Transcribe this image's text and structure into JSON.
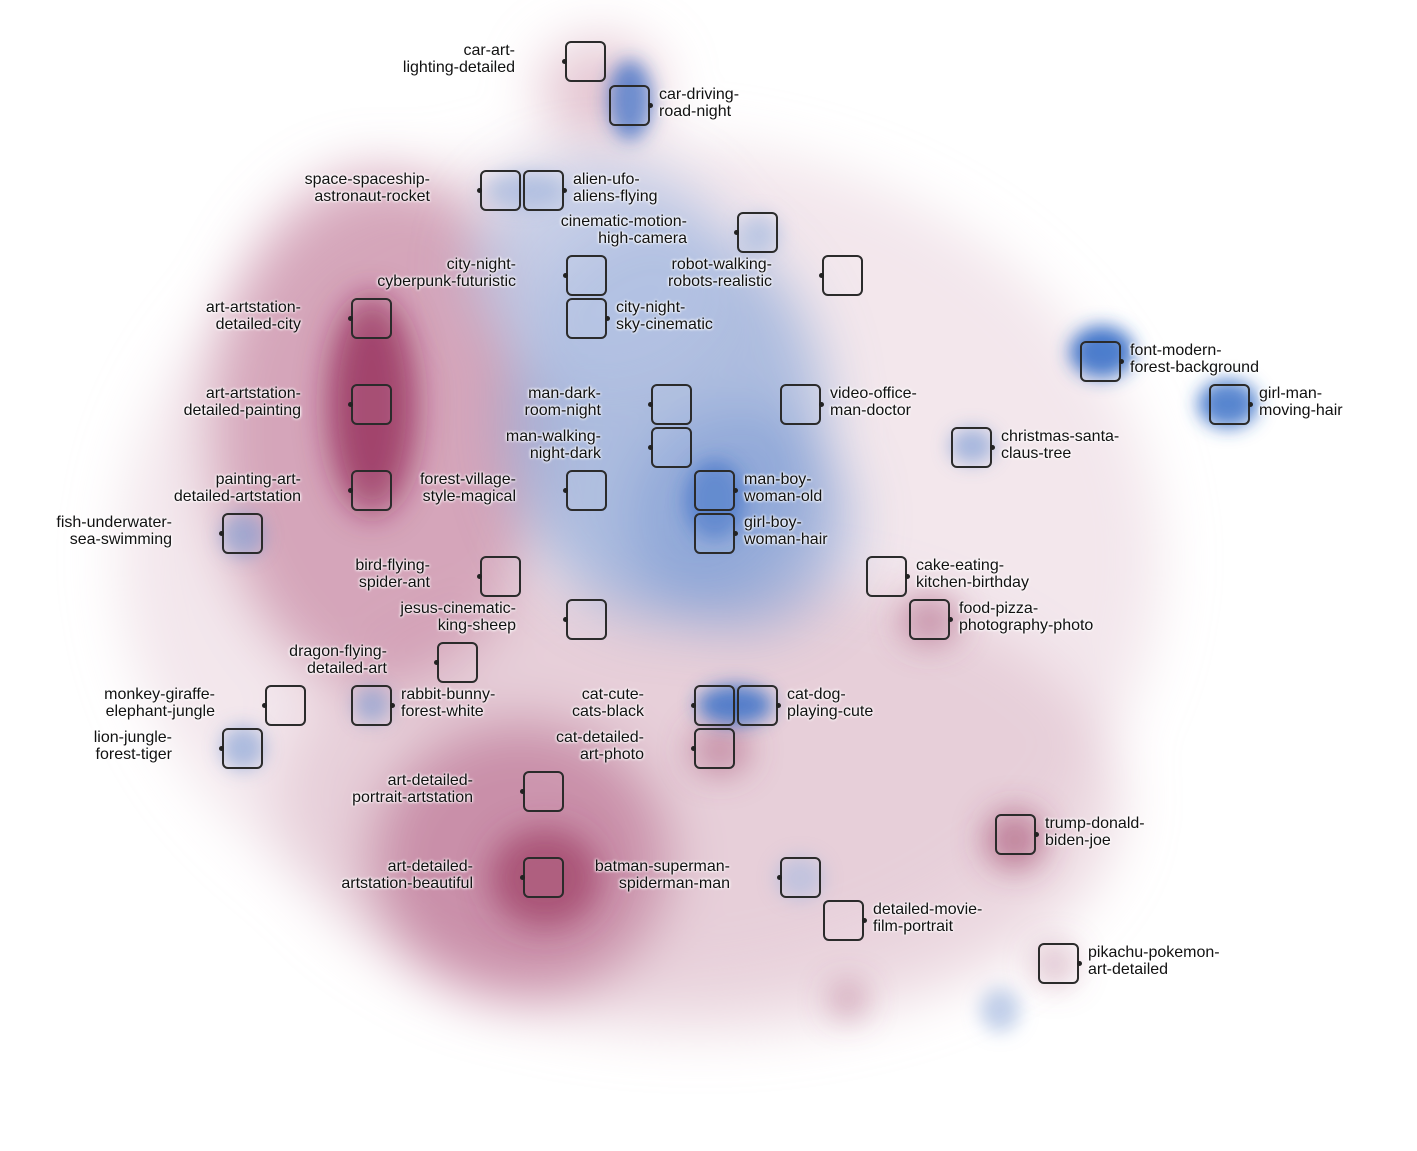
{
  "colors": {
    "red_theme": "#8c1c4d",
    "blue_theme": "#2f67c4"
  },
  "clusters": [
    {
      "id": "car-art",
      "l1": "car-art-",
      "l2": "lighting-detailed",
      "side": "left",
      "theme": "red"
    },
    {
      "id": "car-driving",
      "l1": "car-driving-",
      "l2": "road-night",
      "side": "right",
      "theme": "blue"
    },
    {
      "id": "space-spaceship",
      "l1": "space-spaceship-",
      "l2": "astronaut-rocket",
      "side": "left",
      "theme": "blue"
    },
    {
      "id": "alien-ufo",
      "l1": "alien-ufo-",
      "l2": "aliens-flying",
      "side": "right",
      "theme": "blue"
    },
    {
      "id": "cinematic-motion",
      "l1": "cinematic-motion-",
      "l2": "high-camera",
      "side": "left",
      "theme": "blue"
    },
    {
      "id": "city-night-cyberpunk",
      "l1": "city-night-",
      "l2": "cyberpunk-futuristic",
      "side": "left",
      "theme": "blue"
    },
    {
      "id": "robot-walking",
      "l1": "robot-walking-",
      "l2": "robots-realistic",
      "side": "left",
      "theme": "blue"
    },
    {
      "id": "art-artstation-city",
      "l1": "art-artstation-",
      "l2": "detailed-city",
      "side": "left",
      "theme": "red"
    },
    {
      "id": "city-night-sky",
      "l1": "city-night-",
      "l2": "sky-cinematic",
      "side": "right",
      "theme": "blue"
    },
    {
      "id": "font-modern",
      "l1": "font-modern-",
      "l2": "forest-background",
      "side": "right",
      "theme": "blue"
    },
    {
      "id": "art-artstation-painting",
      "l1": "art-artstation-",
      "l2": "detailed-painting",
      "side": "left",
      "theme": "red"
    },
    {
      "id": "man-dark",
      "l1": "man-dark-",
      "l2": "room-night",
      "side": "left",
      "theme": "blue"
    },
    {
      "id": "video-office",
      "l1": "video-office-",
      "l2": "man-doctor",
      "side": "right",
      "theme": "blue"
    },
    {
      "id": "girl-man",
      "l1": "girl-man-",
      "l2": "moving-hair",
      "side": "right",
      "theme": "blue"
    },
    {
      "id": "man-walking",
      "l1": "man-walking-",
      "l2": "night-dark",
      "side": "left",
      "theme": "blue"
    },
    {
      "id": "christmas-santa",
      "l1": "christmas-santa-",
      "l2": "claus-tree",
      "side": "right",
      "theme": "blue"
    },
    {
      "id": "painting-art",
      "l1": "painting-art-",
      "l2": "detailed-artstation",
      "side": "left",
      "theme": "red"
    },
    {
      "id": "forest-village",
      "l1": "forest-village-",
      "l2": "style-magical",
      "side": "left",
      "theme": "blue"
    },
    {
      "id": "man-boy",
      "l1": "man-boy-",
      "l2": "woman-old",
      "side": "right",
      "theme": "blue"
    },
    {
      "id": "fish-underwater",
      "l1": "fish-underwater-",
      "l2": "sea-swimming",
      "side": "left",
      "theme": "blue"
    },
    {
      "id": "girl-boy",
      "l1": "girl-boy-",
      "l2": "woman-hair",
      "side": "right",
      "theme": "blue"
    },
    {
      "id": "bird-flying",
      "l1": "bird-flying-",
      "l2": "spider-ant",
      "side": "left",
      "theme": "blue"
    },
    {
      "id": "cake-eating",
      "l1": "cake-eating-",
      "l2": "kitchen-birthday",
      "side": "right",
      "theme": "blue"
    },
    {
      "id": "jesus-cinematic",
      "l1": "jesus-cinematic-",
      "l2": "king-sheep",
      "side": "left",
      "theme": "blue"
    },
    {
      "id": "food-pizza",
      "l1": "food-pizza-",
      "l2": "photography-photo",
      "side": "right",
      "theme": "red"
    },
    {
      "id": "dragon-flying",
      "l1": "dragon-flying-",
      "l2": "detailed-art",
      "side": "left",
      "theme": "red"
    },
    {
      "id": "monkey-giraffe",
      "l1": "monkey-giraffe-",
      "l2": "elephant-jungle",
      "side": "left",
      "theme": "blue"
    },
    {
      "id": "rabbit-bunny",
      "l1": "rabbit-bunny-",
      "l2": "forest-white",
      "side": "right",
      "theme": "blue"
    },
    {
      "id": "cat-cute",
      "l1": "cat-cute-",
      "l2": "cats-black",
      "side": "left",
      "theme": "blue"
    },
    {
      "id": "cat-dog",
      "l1": "cat-dog-",
      "l2": "playing-cute",
      "side": "right",
      "theme": "blue"
    },
    {
      "id": "lion-jungle",
      "l1": "lion-jungle-",
      "l2": "forest-tiger",
      "side": "left",
      "theme": "blue"
    },
    {
      "id": "cat-detailed",
      "l1": "cat-detailed-",
      "l2": "art-photo",
      "side": "left",
      "theme": "red"
    },
    {
      "id": "art-detailed-portrait",
      "l1": "art-detailed-",
      "l2": "portrait-artstation",
      "side": "left",
      "theme": "red"
    },
    {
      "id": "trump-donald",
      "l1": "trump-donald-",
      "l2": "biden-joe",
      "side": "right",
      "theme": "red"
    },
    {
      "id": "batman-superman",
      "l1": "batman-superman-",
      "l2": "spiderman-man",
      "side": "left",
      "theme": "blue"
    },
    {
      "id": "art-detailed-beautiful",
      "l1": "art-detailed-",
      "l2": "artstation-beautiful",
      "side": "left",
      "theme": "red"
    },
    {
      "id": "detailed-movie",
      "l1": "detailed-movie-",
      "l2": "film-portrait",
      "side": "right",
      "theme": "red"
    },
    {
      "id": "pikachu-pokemon",
      "l1": "pikachu-pokemon-",
      "l2": "art-detailed",
      "side": "right",
      "theme": "red"
    }
  ]
}
